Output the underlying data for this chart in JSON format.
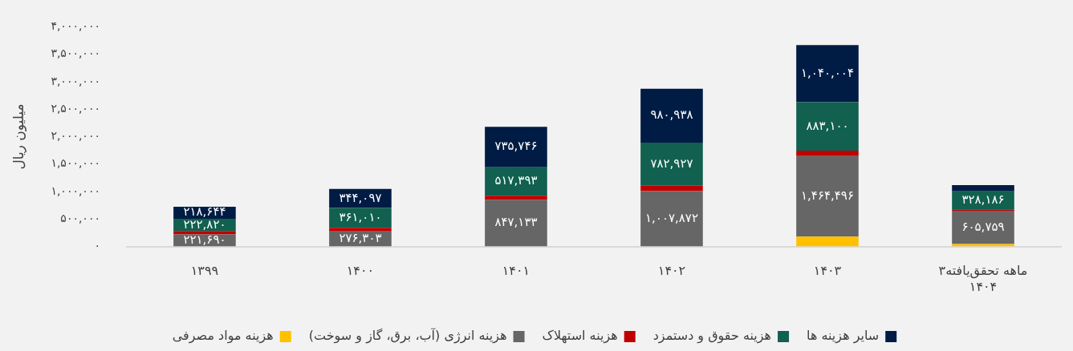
{
  "chart_data": {
    "type": "bar",
    "stacked": true,
    "categories": [
      "۱۳۹۹",
      "۱۴۰۰",
      "۱۴۰۱",
      "۱۴۰۲",
      "۱۴۰۳",
      "۳ماهه تحقق‌یافته\n۱۴۰۴"
    ],
    "ylabel": "میلیون ریال",
    "ylim": [
      0,
      4000000
    ],
    "yticks": [
      {
        "value": 0,
        "label": "۰"
      },
      {
        "value": 500000,
        "label": "۵۰۰,۰۰۰"
      },
      {
        "value": 1000000,
        "label": "۱,۰۰۰,۰۰۰"
      },
      {
        "value": 1500000,
        "label": "۱,۵۰۰,۰۰۰"
      },
      {
        "value": 2000000,
        "label": "۲,۰۰۰,۰۰۰"
      },
      {
        "value": 2500000,
        "label": "۲,۵۰۰,۰۰۰"
      },
      {
        "value": 3000000,
        "label": "۳,۰۰۰,۰۰۰"
      },
      {
        "value": 3500000,
        "label": "۳,۵۰۰,۰۰۰"
      },
      {
        "value": 4000000,
        "label": "۴,۰۰۰,۰۰۰"
      }
    ],
    "series": [
      {
        "name": "هزینه مواد مصرفی",
        "color": "#ffc000",
        "values": [
          null,
          null,
          null,
          null,
          180000,
          45000
        ],
        "value_labels": [
          null,
          null,
          null,
          null,
          null,
          null
        ]
      },
      {
        "name": "هزینه انرژی (آب، برق، گاز و سوخت)",
        "color": "#666666",
        "values": [
          221690,
          276303,
          847133,
          1007872,
          1464496,
          605759
        ],
        "value_labels": [
          "۲۲۱,۶۹۰",
          "۲۷۶,۳۰۳",
          "۸۴۷,۱۳۳",
          "۱,۰۰۷,۸۷۲",
          "۱,۴۶۴,۴۹۶",
          "۶۰۵,۷۵۹"
        ]
      },
      {
        "name": "هزینه استهلاک",
        "color": "#c00000",
        "values": [
          60000,
          65000,
          77000,
          100000,
          100000,
          25000
        ],
        "value_labels": [
          null,
          null,
          null,
          null,
          null,
          null
        ]
      },
      {
        "name": "هزینه حقوق و دستمزد",
        "color": "#116050",
        "values": [
          222820,
          361010,
          517393,
          782927,
          883100,
          328186
        ],
        "value_labels": [
          "۲۲۲,۸۲۰",
          "۳۶۱,۰۱۰",
          "۵۱۷,۳۹۳",
          "۷۸۲,۹۲۷",
          "۸۸۳,۱۰۰",
          "۳۲۸,۱۸۶"
        ]
      },
      {
        "name": "سایر هزینه ها",
        "color": "#001c44",
        "values": [
          218644,
          344097,
          735746,
          980938,
          1040004,
          115000
        ],
        "value_labels": [
          "۲۱۸,۶۴۴",
          "۳۴۴,۰۹۷",
          "۷۳۵,۷۴۶",
          "۹۸۰,۹۳۸",
          "۱,۰۴۰,۰۰۴",
          null
        ]
      }
    ],
    "legend": "bottom",
    "grid": false
  }
}
